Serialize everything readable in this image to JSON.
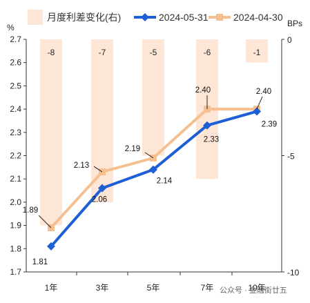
{
  "chart_data": {
    "type": "line",
    "categories": [
      "1年",
      "3年",
      "5年",
      "7年",
      "10年"
    ],
    "left_axis": {
      "unit": "%",
      "ylim": [
        1.7,
        2.7
      ],
      "ticks": [
        "1.7",
        "1.8",
        "1.9",
        "2.0",
        "2.1",
        "2.2",
        "2.3",
        "2.4",
        "2.5",
        "2.6",
        "2.7"
      ]
    },
    "right_axis": {
      "unit": "BPs",
      "ylim": [
        -10,
        0
      ],
      "ticks": [
        "0",
        "-5",
        "-10"
      ]
    },
    "series": [
      {
        "name": "2024-05-31",
        "type": "line",
        "axis": "left",
        "color": "#1f5fd6",
        "values": [
          1.81,
          2.06,
          2.14,
          2.33,
          2.39
        ],
        "labels": [
          "1.81",
          "2.06",
          "2.14",
          "2.33",
          "2.39"
        ]
      },
      {
        "name": "2024-04-30",
        "type": "line",
        "axis": "left",
        "color": "#f5bf90",
        "values": [
          1.89,
          2.13,
          2.19,
          2.4,
          2.4
        ],
        "labels": [
          "1.89",
          "2.13",
          "2.19",
          "2.40",
          "2.40"
        ]
      },
      {
        "name": "月度利差变化(右)",
        "type": "bar",
        "axis": "right",
        "color": "#fde6d6",
        "values": [
          -8,
          -7,
          -5,
          -6,
          -1
        ],
        "labels": [
          "-8",
          "-7",
          "-5",
          "-6",
          "-1"
        ]
      }
    ],
    "legend_position": "top",
    "grid": false
  },
  "watermark": "公众号 · 金融街廿五",
  "colors": {
    "bar": "#fde6d6",
    "blue": "#1f5fd6",
    "orange": "#f5bf90",
    "axis": "#333333"
  }
}
